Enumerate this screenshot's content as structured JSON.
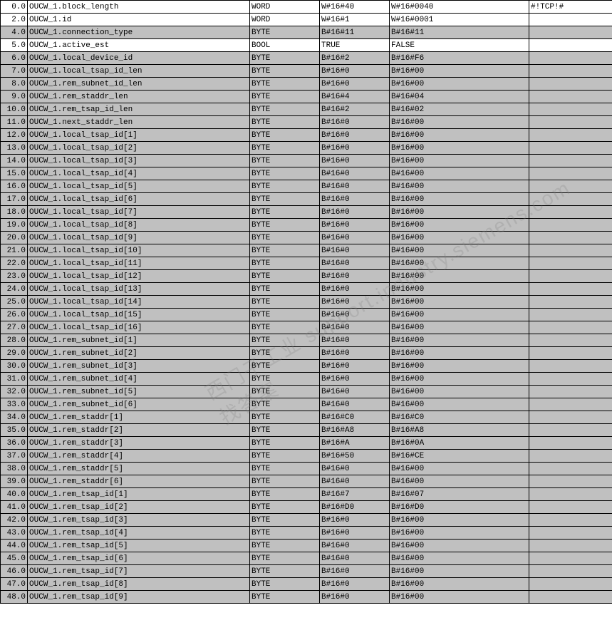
{
  "colors": {
    "shaded_bg": "#c0c0c0",
    "white_bg": "#ffffff",
    "border": "#000000",
    "text": "#000000"
  },
  "columns": {
    "addr_width": 38,
    "name_width": 312,
    "type_width": 98,
    "initial_width": 98,
    "actual_width": 196,
    "comment_width": 117
  },
  "watermark": "西门子工业 support.industry.siemens.com 找答案",
  "rows": [
    {
      "addr": "0.0",
      "name": "OUCW_1.block_length",
      "type": "WORD",
      "initial": "W#16#40",
      "actual": "W#16#0040",
      "comment": "#!TCP!#",
      "shaded": false
    },
    {
      "addr": "2.0",
      "name": "OUCW_1.id",
      "type": "WORD",
      "initial": "W#16#1",
      "actual": "W#16#0001",
      "comment": "",
      "shaded": false
    },
    {
      "addr": "4.0",
      "name": "OUCW_1.connection_type",
      "type": "BYTE",
      "initial": "B#16#11",
      "actual": "B#16#11",
      "comment": "",
      "shaded": true
    },
    {
      "addr": "5.0",
      "name": "OUCW_1.active_est",
      "type": "BOOL",
      "initial": "TRUE",
      "actual": "FALSE",
      "comment": "",
      "shaded": false
    },
    {
      "addr": "6.0",
      "name": "OUCW_1.local_device_id",
      "type": "BYTE",
      "initial": "B#16#2",
      "actual": "B#16#F6",
      "comment": "",
      "shaded": true
    },
    {
      "addr": "7.0",
      "name": "OUCW_1.local_tsap_id_len",
      "type": "BYTE",
      "initial": "B#16#0",
      "actual": "B#16#00",
      "comment": "",
      "shaded": true
    },
    {
      "addr": "8.0",
      "name": "OUCW_1.rem_subnet_id_len",
      "type": "BYTE",
      "initial": "B#16#0",
      "actual": "B#16#00",
      "comment": "",
      "shaded": true
    },
    {
      "addr": "9.0",
      "name": "OUCW_1.rem_staddr_len",
      "type": "BYTE",
      "initial": "B#16#4",
      "actual": "B#16#04",
      "comment": "",
      "shaded": true
    },
    {
      "addr": "10.0",
      "name": "OUCW_1.rem_tsap_id_len",
      "type": "BYTE",
      "initial": "B#16#2",
      "actual": "B#16#02",
      "comment": "",
      "shaded": true
    },
    {
      "addr": "11.0",
      "name": "OUCW_1.next_staddr_len",
      "type": "BYTE",
      "initial": "B#16#0",
      "actual": "B#16#00",
      "comment": "",
      "shaded": true
    },
    {
      "addr": "12.0",
      "name": "OUCW_1.local_tsap_id[1]",
      "type": "BYTE",
      "initial": "B#16#0",
      "actual": "B#16#00",
      "comment": "",
      "shaded": true
    },
    {
      "addr": "13.0",
      "name": "OUCW_1.local_tsap_id[2]",
      "type": "BYTE",
      "initial": "B#16#0",
      "actual": "B#16#00",
      "comment": "",
      "shaded": true
    },
    {
      "addr": "14.0",
      "name": "OUCW_1.local_tsap_id[3]",
      "type": "BYTE",
      "initial": "B#16#0",
      "actual": "B#16#00",
      "comment": "",
      "shaded": true
    },
    {
      "addr": "15.0",
      "name": "OUCW_1.local_tsap_id[4]",
      "type": "BYTE",
      "initial": "B#16#0",
      "actual": "B#16#00",
      "comment": "",
      "shaded": true
    },
    {
      "addr": "16.0",
      "name": "OUCW_1.local_tsap_id[5]",
      "type": "BYTE",
      "initial": "B#16#0",
      "actual": "B#16#00",
      "comment": "",
      "shaded": true
    },
    {
      "addr": "17.0",
      "name": "OUCW_1.local_tsap_id[6]",
      "type": "BYTE",
      "initial": "B#16#0",
      "actual": "B#16#00",
      "comment": "",
      "shaded": true
    },
    {
      "addr": "18.0",
      "name": "OUCW_1.local_tsap_id[7]",
      "type": "BYTE",
      "initial": "B#16#0",
      "actual": "B#16#00",
      "comment": "",
      "shaded": true
    },
    {
      "addr": "19.0",
      "name": "OUCW_1.local_tsap_id[8]",
      "type": "BYTE",
      "initial": "B#16#0",
      "actual": "B#16#00",
      "comment": "",
      "shaded": true
    },
    {
      "addr": "20.0",
      "name": "OUCW_1.local_tsap_id[9]",
      "type": "BYTE",
      "initial": "B#16#0",
      "actual": "B#16#00",
      "comment": "",
      "shaded": true
    },
    {
      "addr": "21.0",
      "name": "OUCW_1.local_tsap_id[10]",
      "type": "BYTE",
      "initial": "B#16#0",
      "actual": "B#16#00",
      "comment": "",
      "shaded": true
    },
    {
      "addr": "22.0",
      "name": "OUCW_1.local_tsap_id[11]",
      "type": "BYTE",
      "initial": "B#16#0",
      "actual": "B#16#00",
      "comment": "",
      "shaded": true
    },
    {
      "addr": "23.0",
      "name": "OUCW_1.local_tsap_id[12]",
      "type": "BYTE",
      "initial": "B#16#0",
      "actual": "B#16#00",
      "comment": "",
      "shaded": true
    },
    {
      "addr": "24.0",
      "name": "OUCW_1.local_tsap_id[13]",
      "type": "BYTE",
      "initial": "B#16#0",
      "actual": "B#16#00",
      "comment": "",
      "shaded": true
    },
    {
      "addr": "25.0",
      "name": "OUCW_1.local_tsap_id[14]",
      "type": "BYTE",
      "initial": "B#16#0",
      "actual": "B#16#00",
      "comment": "",
      "shaded": true
    },
    {
      "addr": "26.0",
      "name": "OUCW_1.local_tsap_id[15]",
      "type": "BYTE",
      "initial": "B#16#0",
      "actual": "B#16#00",
      "comment": "",
      "shaded": true
    },
    {
      "addr": "27.0",
      "name": "OUCW_1.local_tsap_id[16]",
      "type": "BYTE",
      "initial": "B#16#0",
      "actual": "B#16#00",
      "comment": "",
      "shaded": true
    },
    {
      "addr": "28.0",
      "name": "OUCW_1.rem_subnet_id[1]",
      "type": "BYTE",
      "initial": "B#16#0",
      "actual": "B#16#00",
      "comment": "",
      "shaded": true
    },
    {
      "addr": "29.0",
      "name": "OUCW_1.rem_subnet_id[2]",
      "type": "BYTE",
      "initial": "B#16#0",
      "actual": "B#16#00",
      "comment": "",
      "shaded": true
    },
    {
      "addr": "30.0",
      "name": "OUCW_1.rem_subnet_id[3]",
      "type": "BYTE",
      "initial": "B#16#0",
      "actual": "B#16#00",
      "comment": "",
      "shaded": true
    },
    {
      "addr": "31.0",
      "name": "OUCW_1.rem_subnet_id[4]",
      "type": "BYTE",
      "initial": "B#16#0",
      "actual": "B#16#00",
      "comment": "",
      "shaded": true
    },
    {
      "addr": "32.0",
      "name": "OUCW_1.rem_subnet_id[5]",
      "type": "BYTE",
      "initial": "B#16#0",
      "actual": "B#16#00",
      "comment": "",
      "shaded": true
    },
    {
      "addr": "33.0",
      "name": "OUCW_1.rem_subnet_id[6]",
      "type": "BYTE",
      "initial": "B#16#0",
      "actual": "B#16#00",
      "comment": "",
      "shaded": true
    },
    {
      "addr": "34.0",
      "name": "OUCW_1.rem_staddr[1]",
      "type": "BYTE",
      "initial": "B#16#C0",
      "actual": "B#16#C0",
      "comment": "",
      "shaded": true
    },
    {
      "addr": "35.0",
      "name": "OUCW_1.rem_staddr[2]",
      "type": "BYTE",
      "initial": "B#16#A8",
      "actual": "B#16#A8",
      "comment": "",
      "shaded": true
    },
    {
      "addr": "36.0",
      "name": "OUCW_1.rem_staddr[3]",
      "type": "BYTE",
      "initial": "B#16#A",
      "actual": "B#16#0A",
      "comment": "",
      "shaded": true
    },
    {
      "addr": "37.0",
      "name": "OUCW_1.rem_staddr[4]",
      "type": "BYTE",
      "initial": "B#16#50",
      "actual": "B#16#CE",
      "comment": "",
      "shaded": true
    },
    {
      "addr": "38.0",
      "name": "OUCW_1.rem_staddr[5]",
      "type": "BYTE",
      "initial": "B#16#0",
      "actual": "B#16#00",
      "comment": "",
      "shaded": true
    },
    {
      "addr": "39.0",
      "name": "OUCW_1.rem_staddr[6]",
      "type": "BYTE",
      "initial": "B#16#0",
      "actual": "B#16#00",
      "comment": "",
      "shaded": true
    },
    {
      "addr": "40.0",
      "name": "OUCW_1.rem_tsap_id[1]",
      "type": "BYTE",
      "initial": "B#16#7",
      "actual": "B#16#07",
      "comment": "",
      "shaded": true
    },
    {
      "addr": "41.0",
      "name": "OUCW_1.rem_tsap_id[2]",
      "type": "BYTE",
      "initial": "B#16#D0",
      "actual": "B#16#D0",
      "comment": "",
      "shaded": true
    },
    {
      "addr": "42.0",
      "name": "OUCW_1.rem_tsap_id[3]",
      "type": "BYTE",
      "initial": "B#16#0",
      "actual": "B#16#00",
      "comment": "",
      "shaded": true
    },
    {
      "addr": "43.0",
      "name": "OUCW_1.rem_tsap_id[4]",
      "type": "BYTE",
      "initial": "B#16#0",
      "actual": "B#16#00",
      "comment": "",
      "shaded": true
    },
    {
      "addr": "44.0",
      "name": "OUCW_1.rem_tsap_id[5]",
      "type": "BYTE",
      "initial": "B#16#0",
      "actual": "B#16#00",
      "comment": "",
      "shaded": true
    },
    {
      "addr": "45.0",
      "name": "OUCW_1.rem_tsap_id[6]",
      "type": "BYTE",
      "initial": "B#16#0",
      "actual": "B#16#00",
      "comment": "",
      "shaded": true
    },
    {
      "addr": "46.0",
      "name": "OUCW_1.rem_tsap_id[7]",
      "type": "BYTE",
      "initial": "B#16#0",
      "actual": "B#16#00",
      "comment": "",
      "shaded": true
    },
    {
      "addr": "47.0",
      "name": "OUCW_1.rem_tsap_id[8]",
      "type": "BYTE",
      "initial": "B#16#0",
      "actual": "B#16#00",
      "comment": "",
      "shaded": true
    },
    {
      "addr": "48.0",
      "name": "OUCW_1.rem_tsap_id[9]",
      "type": "BYTE",
      "initial": "B#16#0",
      "actual": "B#16#00",
      "comment": "",
      "shaded": true
    }
  ]
}
